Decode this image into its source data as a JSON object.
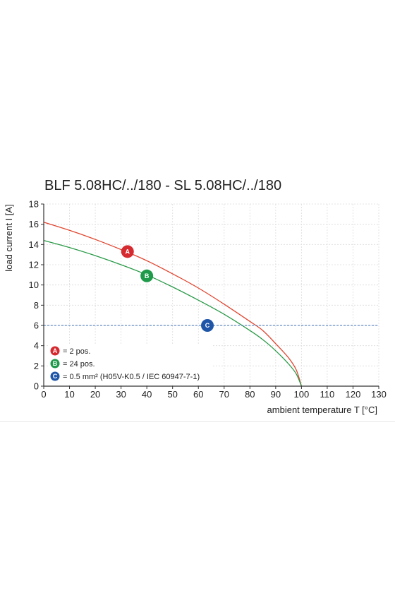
{
  "chart_data": {
    "type": "line",
    "title": "BLF 5.08HC/../180 - SL 5.08HC/../180",
    "xlabel": "ambient temperature T [°C]",
    "ylabel": "load current I [A]",
    "xlim": [
      0,
      130
    ],
    "ylim": [
      0,
      18
    ],
    "xticks": [
      "0",
      "10",
      "20",
      "30",
      "40",
      "50",
      "60",
      "70",
      "80",
      "90",
      "100",
      "110",
      "120",
      "130"
    ],
    "yticks": [
      "0",
      "2",
      "4",
      "6",
      "8",
      "10",
      "12",
      "14",
      "16",
      "18"
    ],
    "grid": true,
    "series": [
      {
        "name": "A",
        "color": "#e0452f",
        "x": [
          0,
          10,
          20,
          30,
          40,
          50,
          60,
          70,
          80,
          85,
          90,
          95,
          98,
          100
        ],
        "y": [
          16.2,
          15.4,
          14.5,
          13.5,
          12.4,
          11.1,
          9.7,
          8.1,
          6.4,
          5.5,
          4.2,
          2.8,
          1.6,
          0
        ]
      },
      {
        "name": "B",
        "color": "#2a9a48",
        "x": [
          0,
          10,
          20,
          30,
          40,
          50,
          60,
          70,
          80,
          85,
          90,
          95,
          98,
          100
        ],
        "y": [
          14.4,
          13.7,
          12.9,
          12.0,
          11.0,
          9.8,
          8.5,
          7.1,
          5.5,
          4.6,
          3.5,
          2.2,
          1.2,
          0
        ]
      },
      {
        "name": "C",
        "color": "#3b6fb5",
        "style": "dashed",
        "x": [
          0,
          130
        ],
        "y": [
          6,
          6
        ]
      }
    ],
    "markers": [
      {
        "label": "A",
        "x": 32.5,
        "y": 13.3,
        "color": "#d42a30"
      },
      {
        "label": "B",
        "x": 40,
        "y": 10.9,
        "color": "#1e9a4a"
      },
      {
        "label": "C",
        "x": 63.5,
        "y": 6,
        "color": "#1f56a8"
      }
    ],
    "legend": {
      "placement": "bottom-left",
      "entries": [
        {
          "label": "A",
          "text": "= 2 pos.",
          "color": "#d42a30"
        },
        {
          "label": "B",
          "text": "= 24 pos.",
          "color": "#1e9a4a"
        },
        {
          "label": "C",
          "text": "= 0.5 mm² (H05V-K0.5 / IEC 60947-7-1)",
          "color": "#1f56a8"
        }
      ]
    }
  }
}
